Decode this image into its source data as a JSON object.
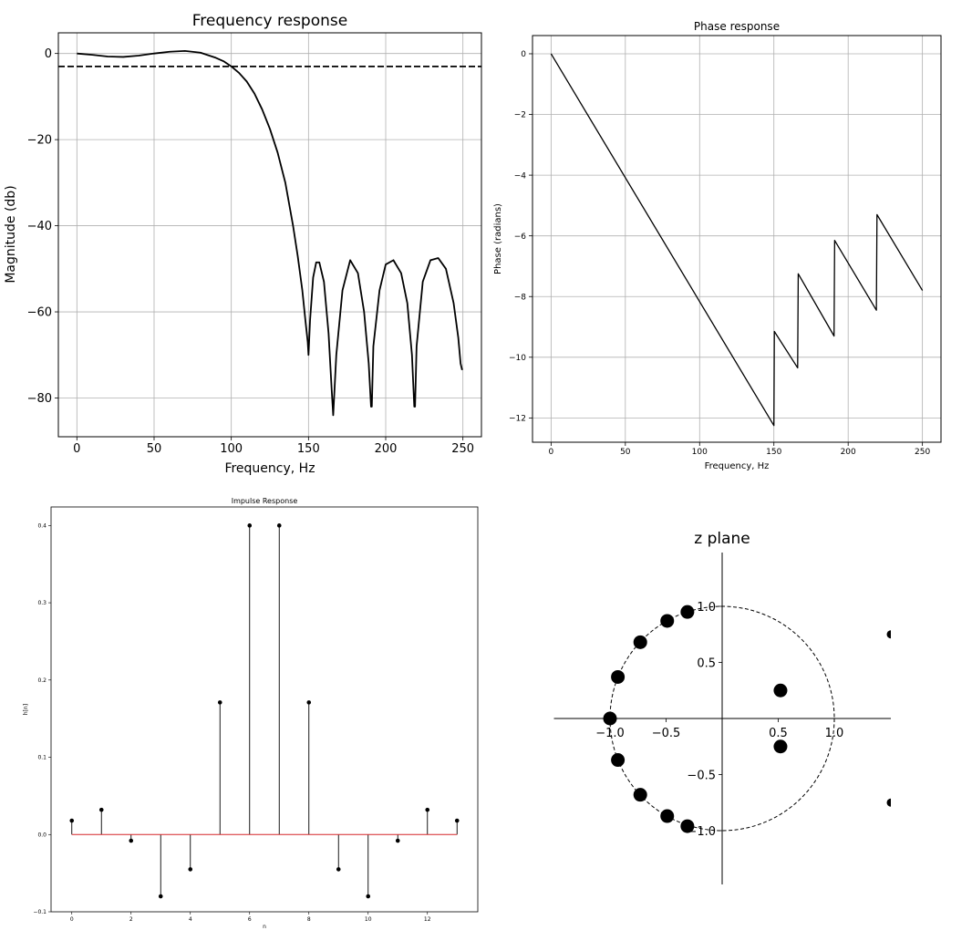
{
  "chart_data": [
    {
      "type": "line",
      "title": "Frequency response",
      "xlabel": "Frequency, Hz",
      "ylabel": "Magnitude (db)",
      "xlim": [
        -12,
        262
      ],
      "ylim": [
        -89,
        4.8
      ],
      "xticks": [
        0,
        50,
        100,
        150,
        200,
        250
      ],
      "yticks": [
        0,
        -20,
        -40,
        -60,
        -80
      ],
      "grid": true,
      "series": [
        {
          "style": "solid",
          "x": [
            0,
            10,
            20,
            30,
            40,
            50,
            60,
            70,
            80,
            90,
            95,
            100,
            105,
            110,
            115,
            120,
            125,
            130,
            135,
            140,
            143,
            146,
            148,
            149.5,
            150,
            151,
            153,
            155,
            157,
            160,
            163,
            165,
            166,
            168,
            172,
            177,
            182,
            186,
            189,
            190.5,
            191,
            192,
            196,
            200,
            205,
            210,
            214,
            217,
            218.5,
            219,
            220,
            224,
            229,
            234,
            239,
            244,
            247,
            248.5,
            249.5
          ],
          "y": [
            0,
            -0.3,
            -0.7,
            -0.8,
            -0.5,
            0,
            0.4,
            0.6,
            0.2,
            -1.0,
            -1.8,
            -3.0,
            -4.5,
            -6.5,
            -9.3,
            -13,
            -17.5,
            -23,
            -30,
            -40,
            -47,
            -55,
            -62,
            -67,
            -70,
            -62,
            -52,
            -48.5,
            -48.5,
            -53,
            -65,
            -78,
            -84,
            -70,
            -55,
            -48,
            -51,
            -60,
            -72,
            -82,
            -82,
            -68,
            -55,
            -49,
            -48,
            -51,
            -58,
            -70,
            -82,
            -82,
            -68,
            -53,
            -48,
            -47.5,
            -50,
            -58,
            -66,
            -72,
            -73.5
          ]
        },
        {
          "style": "dashed",
          "x": [
            -12,
            262
          ],
          "y": [
            -3,
            -3
          ]
        }
      ]
    },
    {
      "type": "line",
      "title": "Phase response",
      "xlabel": "Frequency, Hz",
      "ylabel": "Phase (radians)",
      "xlim": [
        -12.5,
        262.5
      ],
      "ylim": [
        -12.8,
        0.6
      ],
      "xticks": [
        0,
        50,
        100,
        150,
        200,
        250
      ],
      "yticks": [
        0,
        -2,
        -4,
        -6,
        -8,
        -10,
        -12
      ],
      "grid": true,
      "series": [
        {
          "style": "solid",
          "x": [
            0,
            150,
            150.3,
            166,
            166.4,
            190.5,
            190.9,
            219,
            219.4,
            250
          ],
          "y": [
            0,
            -12.25,
            -9.15,
            -10.35,
            -7.25,
            -9.3,
            -6.15,
            -8.45,
            -5.3,
            -7.8
          ]
        }
      ]
    },
    {
      "type": "stem",
      "title": "Impulse Response",
      "xlabel": "n",
      "ylabel": "h[n]",
      "xlim": [
        -0.7,
        13.7
      ],
      "ylim": [
        -0.1,
        0.424
      ],
      "xticks": [
        0,
        2,
        4,
        6,
        8,
        10,
        12
      ],
      "yticks": [
        -0.1,
        0.0,
        0.1,
        0.2,
        0.3,
        0.4
      ],
      "grid": false,
      "x": [
        0,
        1,
        2,
        3,
        4,
        5,
        6,
        7,
        8,
        9,
        10,
        11,
        12,
        13
      ],
      "values": [
        0.018,
        0.032,
        -0.008,
        -0.08,
        -0.045,
        0.171,
        0.4,
        0.4,
        0.171,
        -0.045,
        -0.08,
        -0.008,
        0.032,
        0.018
      ],
      "colors": {
        "baseline": "#d62728",
        "stem": "#000000"
      }
    },
    {
      "type": "scatter",
      "title": "z plane",
      "xticks": [
        -1.0,
        -0.5,
        0.5,
        1.0
      ],
      "yticks": [
        1.0,
        0.5,
        -0.5,
        -1.0
      ],
      "xlim": [
        -1.5,
        1.5
      ],
      "ylim": [
        -1.48,
        1.48
      ],
      "unit_circle": "dashed",
      "zeros": [
        [
          -0.31,
          0.95
        ],
        [
          -0.49,
          0.87
        ],
        [
          -0.73,
          0.68
        ],
        [
          -0.93,
          0.37
        ],
        [
          -1.0,
          0.0
        ],
        [
          -0.93,
          -0.37
        ],
        [
          -0.73,
          -0.68
        ],
        [
          -0.49,
          -0.87
        ],
        [
          -0.31,
          -0.96
        ],
        [
          0.52,
          0.25
        ],
        [
          0.52,
          -0.25
        ]
      ],
      "clipped_markers_y": [
        0.75,
        -0.75
      ]
    }
  ]
}
